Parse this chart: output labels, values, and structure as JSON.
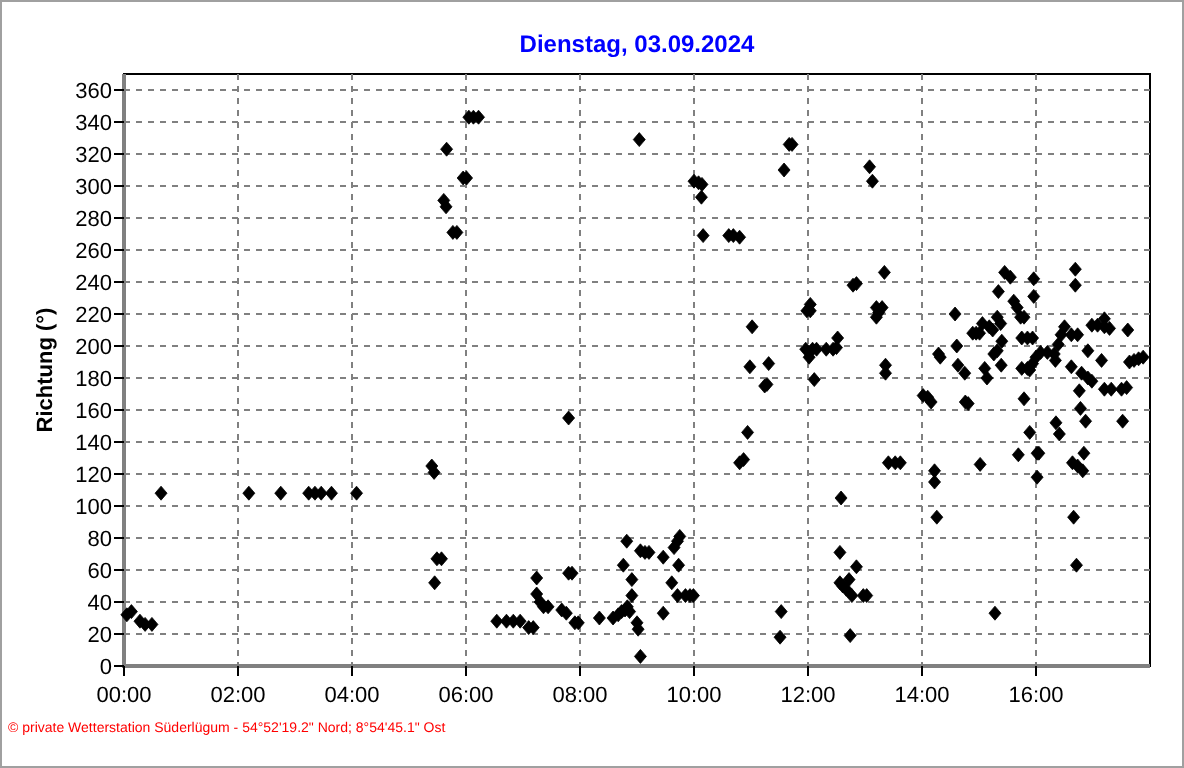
{
  "chart_data": {
    "type": "scatter",
    "title": "Dienstag, 03.09.2024",
    "ylabel": "Richtung  (°)",
    "xlim": [
      0,
      18
    ],
    "ylim": [
      0,
      370
    ],
    "xticks": [
      {
        "value": 0,
        "label": "00:00"
      },
      {
        "value": 2,
        "label": "02:00"
      },
      {
        "value": 4,
        "label": "04:00"
      },
      {
        "value": 6,
        "label": "06:00"
      },
      {
        "value": 8,
        "label": "08:00"
      },
      {
        "value": 10,
        "label": "10:00"
      },
      {
        "value": 12,
        "label": "12:00"
      },
      {
        "value": 14,
        "label": "14:00"
      },
      {
        "value": 16,
        "label": "16:00"
      }
    ],
    "yticks": [
      0,
      20,
      40,
      60,
      80,
      100,
      120,
      140,
      160,
      180,
      200,
      220,
      240,
      260,
      280,
      300,
      320,
      340,
      360
    ],
    "grid": true,
    "marker": "diamond",
    "annotations": [
      "© private Wetterstation Süderlügum - 54°52'19.2\" Nord; 8°54'45.1\" Ost"
    ],
    "series": [
      {
        "color": "#000000",
        "x": [
          0.05,
          0.13,
          0.28,
          0.37,
          0.49,
          0.65,
          2.19,
          2.75,
          3.24,
          3.35,
          3.46,
          3.64,
          4.08,
          5.4,
          5.44,
          5.45,
          5.49,
          5.57,
          5.66,
          5.61,
          5.65,
          5.77,
          5.84,
          5.95,
          6.01,
          6.05,
          6.13,
          6.22,
          6.54,
          6.71,
          6.83,
          6.95,
          7.1,
          7.18,
          7.24,
          7.24,
          7.3,
          7.36,
          7.44,
          7.68,
          7.76,
          7.8,
          7.8,
          7.86,
          7.91,
          7.97,
          8.34,
          8.58,
          8.67,
          8.73,
          8.79,
          8.83,
          8.87,
          8.82,
          8.76,
          8.91,
          8.91,
          9.0,
          9.02,
          9.04,
          9.06,
          9.06,
          9.14,
          9.21,
          9.46,
          9.46,
          9.61,
          9.65,
          9.71,
          9.75,
          9.73,
          9.71,
          9.85,
          9.93,
          9.99,
          10.0,
          10.08,
          10.14,
          10.13,
          10.16,
          10.61,
          10.69,
          10.8,
          10.8,
          10.87,
          10.94,
          10.98,
          11.02,
          11.24,
          11.28,
          11.31,
          11.53,
          11.51,
          11.58,
          11.67,
          11.72,
          11.98,
          12.04,
          12.04,
          11.96,
          12.08,
          12.02,
          12.11,
          12.15,
          12.32,
          12.44,
          12.5,
          12.52,
          12.58,
          12.56,
          12.56,
          12.61,
          12.67,
          12.72,
          12.77,
          12.85,
          12.74,
          12.79,
          12.85,
          12.97,
          13.03,
          13.08,
          13.13,
          13.2,
          13.24,
          13.3,
          13.2,
          13.34,
          13.36,
          13.36,
          13.41,
          13.53,
          13.62,
          14.02,
          14.1,
          14.16,
          14.22,
          14.22,
          14.26,
          14.29,
          14.32,
          14.58,
          14.61,
          14.63,
          14.75,
          14.76,
          14.81,
          14.89,
          14.95,
          15.01,
          15.02,
          15.1,
          15.14,
          15.06,
          15.18,
          15.24,
          15.28,
          15.26,
          15.32,
          15.34,
          15.32,
          15.38,
          15.4,
          15.39,
          15.45,
          15.55,
          15.61,
          15.67,
          15.69,
          15.73,
          15.79,
          15.75,
          15.85,
          15.94,
          15.75,
          15.85,
          15.89,
          15.79,
          15.89,
          15.96,
          15.96,
          16.02,
          16.05,
          16.02,
          15.94,
          16.0,
          16.08,
          16.2,
          16.32,
          16.34,
          16.39,
          16.44,
          16.5,
          16.35,
          16.41,
          16.62,
          16.73,
          16.62,
          16.64,
          16.69,
          16.69,
          16.66,
          16.71,
          16.73,
          16.76,
          16.78,
          16.8,
          16.87,
          16.84,
          16.82,
          16.91,
          16.91,
          16.98,
          16.98,
          17.08,
          17.2,
          17.29,
          17.2,
          17.15,
          17.2,
          17.32,
          17.5,
          17.59,
          17.52,
          17.61,
          17.64,
          17.72,
          17.8,
          17.88
        ],
        "values": [
          32,
          34,
          28,
          26,
          26,
          108,
          108,
          108,
          108,
          108,
          108,
          108,
          108,
          125,
          121,
          52,
          67,
          67,
          323,
          291,
          287,
          271,
          271,
          305,
          305,
          343,
          343,
          343,
          28,
          28,
          28,
          28,
          24,
          24,
          55,
          45,
          40,
          37,
          37,
          35,
          33,
          155,
          58,
          58,
          27,
          27,
          30,
          30,
          32,
          34,
          35,
          37,
          34,
          78,
          63,
          54,
          44,
          27,
          23,
          329,
          6,
          72,
          71,
          71,
          68,
          33,
          52,
          74,
          78,
          81,
          63,
          44,
          44,
          44,
          44,
          303,
          302,
          301,
          293,
          269,
          269,
          269,
          268,
          127,
          129,
          146,
          187,
          212,
          175,
          176,
          189,
          34,
          18,
          310,
          326,
          326,
          222,
          226,
          222,
          198,
          198,
          193,
          179,
          198,
          198,
          198,
          199,
          205,
          105,
          71,
          52,
          50,
          48,
          54,
          44,
          62,
          19,
          238,
          239,
          44,
          44,
          312,
          303,
          224,
          221,
          224,
          218,
          246,
          188,
          183,
          127,
          127,
          127,
          169,
          168,
          165,
          122,
          115,
          93,
          195,
          193,
          220,
          200,
          188,
          183,
          165,
          164,
          208,
          208,
          208,
          126,
          186,
          180,
          214,
          212,
          210,
          33,
          195,
          197,
          234,
          218,
          214,
          203,
          188,
          246,
          243,
          228,
          224,
          132,
          218,
          218,
          205,
          205,
          205,
          186,
          186,
          185,
          167,
          146,
          231,
          242,
          133,
          133,
          118,
          189,
          193,
          196,
          196,
          195,
          191,
          201,
          207,
          212,
          152,
          145,
          207,
          207,
          187,
          127,
          248,
          238,
          93,
          63,
          125,
          172,
          161,
          183,
          153,
          133,
          122,
          197,
          180,
          178,
          213,
          213,
          212,
          211,
          217,
          191,
          173,
          173,
          173,
          174,
          153,
          210,
          190,
          191,
          192,
          193
        ]
      }
    ]
  }
}
